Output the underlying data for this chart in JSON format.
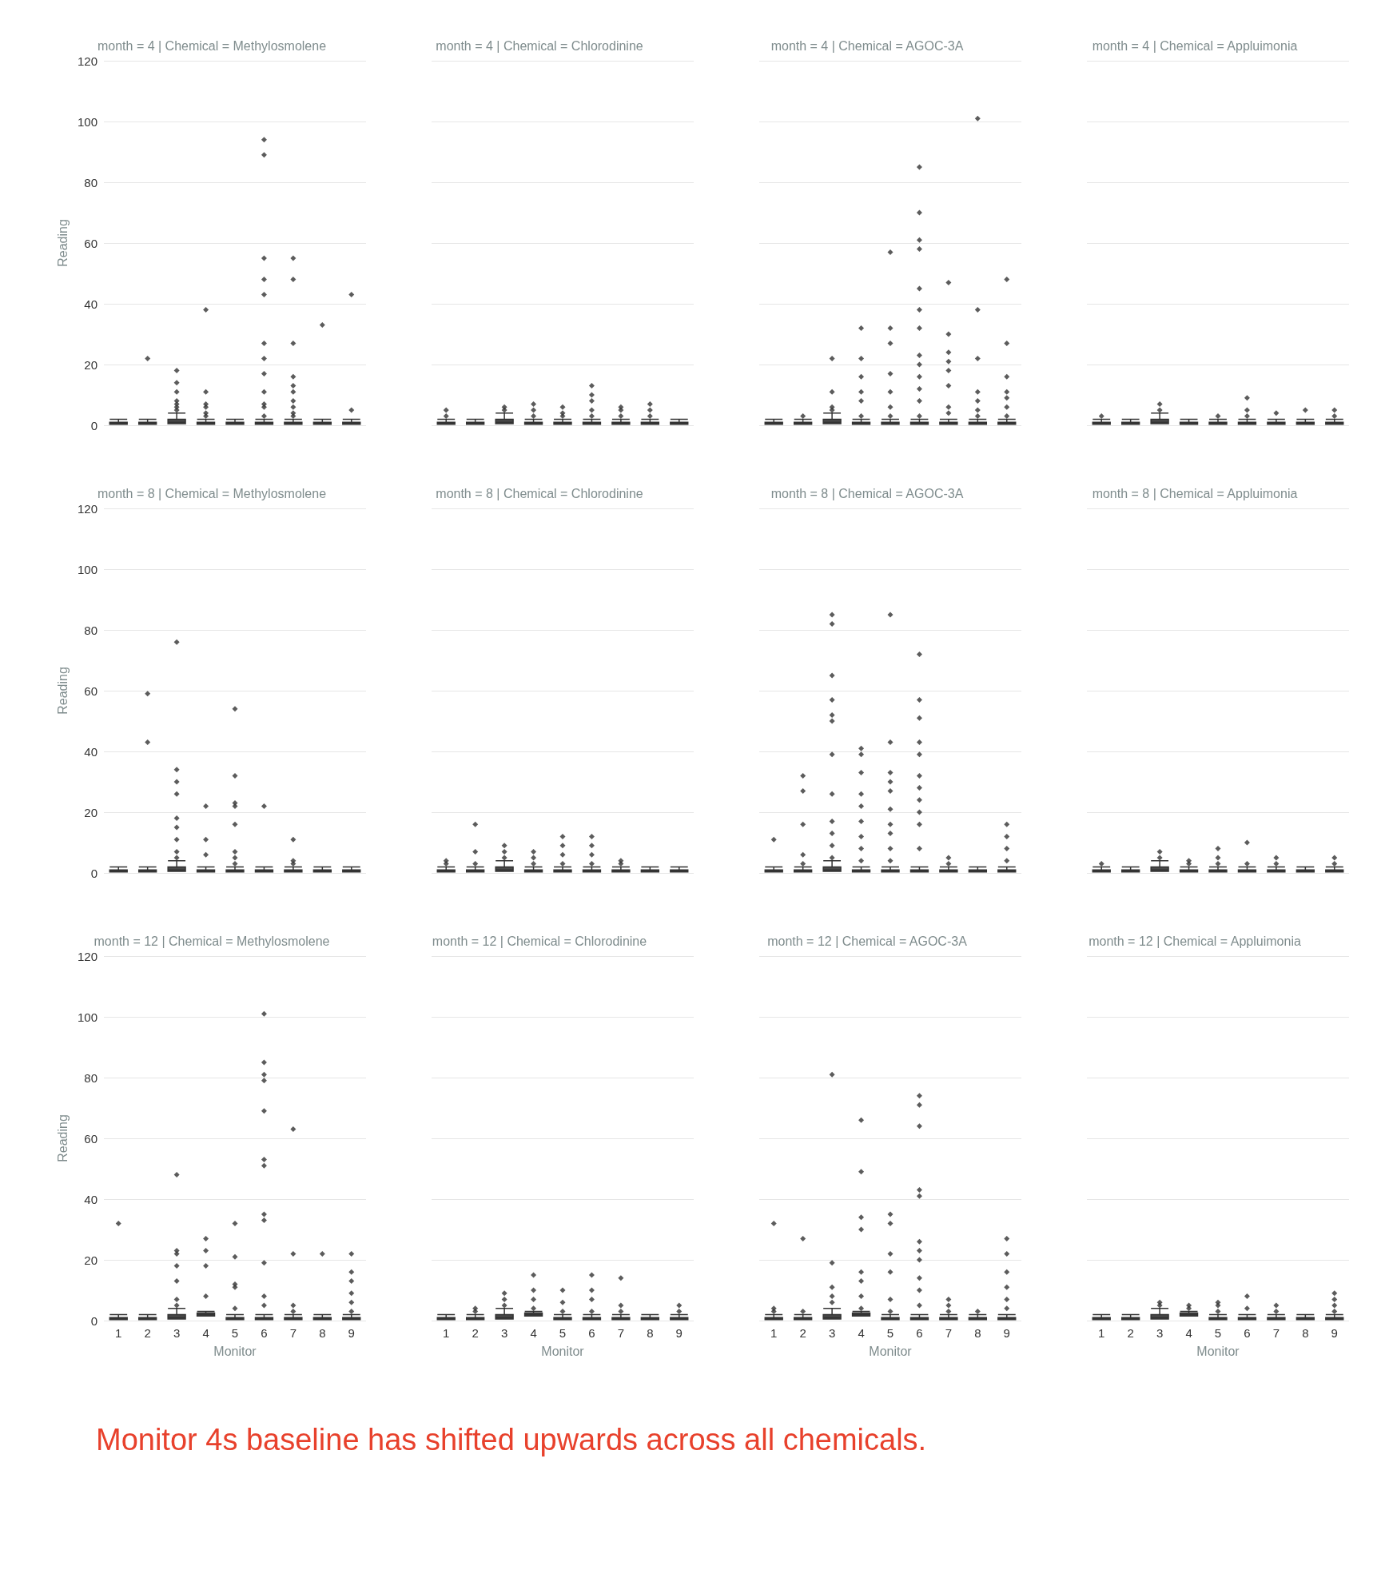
{
  "chart_data": [
    {
      "type": "box",
      "title": "month = 4 | Chemical = Methylosmolene",
      "ylabel": "Reading",
      "categories": [
        "1",
        "2",
        "3",
        "4",
        "5",
        "6",
        "7",
        "8",
        "9"
      ],
      "ylim": [
        0,
        120
      ],
      "yticks": [
        0,
        20,
        40,
        60,
        80,
        100,
        120
      ],
      "grid": "y",
      "tick_labels": "y",
      "marker": "diamond",
      "color": "#4a4a4a",
      "boxes": [
        {
          "low": 0.3,
          "q1": 0.3,
          "median": 0.6,
          "q3": 1,
          "high": 2
        },
        {
          "low": 0.3,
          "q1": 0.3,
          "median": 0.6,
          "q3": 1,
          "high": 2,
          "outliers": [
            22
          ]
        },
        {
          "low": 0.5,
          "q1": 0.5,
          "median": 1,
          "q3": 2,
          "high": 4,
          "outliers": [
            5,
            6,
            7,
            8,
            11,
            14,
            18
          ]
        },
        {
          "low": 0.3,
          "q1": 0.3,
          "median": 0.6,
          "q3": 1,
          "high": 2,
          "outliers": [
            3,
            4,
            6,
            7,
            11,
            38
          ]
        },
        {
          "low": 0.3,
          "q1": 0.3,
          "median": 0.6,
          "q3": 1,
          "high": 2
        },
        {
          "low": 0.3,
          "q1": 0.3,
          "median": 0.6,
          "q3": 1,
          "high": 2,
          "outliers": [
            3,
            6,
            7,
            11,
            17,
            22,
            27,
            43,
            48,
            55,
            89,
            94
          ]
        },
        {
          "low": 0.3,
          "q1": 0.3,
          "median": 0.6,
          "q3": 1,
          "high": 2,
          "outliers": [
            3,
            4,
            6,
            8,
            11,
            13,
            16,
            27,
            48,
            55
          ]
        },
        {
          "low": 0.3,
          "q1": 0.3,
          "median": 0.6,
          "q3": 1,
          "high": 2,
          "outliers": [
            33
          ]
        },
        {
          "low": 0.3,
          "q1": 0.3,
          "median": 0.6,
          "q3": 1,
          "high": 2,
          "outliers": [
            5,
            43
          ]
        }
      ]
    },
    {
      "type": "box",
      "title": "month = 4 | Chemical = Chlorodinine",
      "categories": [
        "1",
        "2",
        "3",
        "4",
        "5",
        "6",
        "7",
        "8",
        "9"
      ],
      "ylim": [
        0,
        120
      ],
      "yticks": [
        0,
        20,
        40,
        60,
        80,
        100,
        120
      ],
      "grid": "y",
      "tick_labels": false,
      "marker": "diamond",
      "color": "#4a4a4a",
      "boxes": [
        {
          "low": 0.3,
          "q1": 0.3,
          "median": 0.6,
          "q3": 1,
          "high": 2,
          "outliers": [
            3,
            5
          ]
        },
        {
          "low": 0.3,
          "q1": 0.3,
          "median": 0.6,
          "q3": 1,
          "high": 2
        },
        {
          "low": 0.5,
          "q1": 0.5,
          "median": 1,
          "q3": 2,
          "high": 4,
          "outliers": [
            5,
            6
          ]
        },
        {
          "low": 0.3,
          "q1": 0.3,
          "median": 0.6,
          "q3": 1,
          "high": 2,
          "outliers": [
            3,
            5,
            7
          ]
        },
        {
          "low": 0.3,
          "q1": 0.3,
          "median": 0.6,
          "q3": 1,
          "high": 2,
          "outliers": [
            3,
            4,
            6
          ]
        },
        {
          "low": 0.3,
          "q1": 0.3,
          "median": 0.6,
          "q3": 1,
          "high": 2,
          "outliers": [
            3,
            5,
            8,
            10,
            13
          ]
        },
        {
          "low": 0.3,
          "q1": 0.3,
          "median": 0.6,
          "q3": 1,
          "high": 2,
          "outliers": [
            3,
            5,
            6
          ]
        },
        {
          "low": 0.3,
          "q1": 0.3,
          "median": 0.6,
          "q3": 1,
          "high": 2,
          "outliers": [
            3,
            5,
            7
          ]
        },
        {
          "low": 0.3,
          "q1": 0.3,
          "median": 0.6,
          "q3": 1,
          "high": 2
        }
      ]
    },
    {
      "type": "box",
      "title": "month = 4 | Chemical = AGOC-3A",
      "categories": [
        "1",
        "2",
        "3",
        "4",
        "5",
        "6",
        "7",
        "8",
        "9"
      ],
      "ylim": [
        0,
        120
      ],
      "yticks": [
        0,
        20,
        40,
        60,
        80,
        100,
        120
      ],
      "grid": "y",
      "tick_labels": false,
      "marker": "diamond",
      "color": "#4a4a4a",
      "boxes": [
        {
          "low": 0.3,
          "q1": 0.3,
          "median": 0.6,
          "q3": 1,
          "high": 2
        },
        {
          "low": 0.3,
          "q1": 0.3,
          "median": 0.6,
          "q3": 1,
          "high": 2,
          "outliers": [
            3
          ]
        },
        {
          "low": 0.5,
          "q1": 0.5,
          "median": 1,
          "q3": 2,
          "high": 4,
          "outliers": [
            5,
            6,
            11,
            22
          ]
        },
        {
          "low": 0.3,
          "q1": 0.3,
          "median": 0.6,
          "q3": 1,
          "high": 2,
          "outliers": [
            3,
            8,
            11,
            16,
            22,
            32
          ]
        },
        {
          "low": 0.3,
          "q1": 0.3,
          "median": 0.6,
          "q3": 1,
          "high": 2,
          "outliers": [
            3,
            6,
            11,
            17,
            27,
            32,
            57
          ]
        },
        {
          "low": 0.3,
          "q1": 0.3,
          "median": 0.6,
          "q3": 1,
          "high": 2,
          "outliers": [
            3,
            8,
            12,
            16,
            20,
            23,
            32,
            38,
            45,
            58,
            61,
            70,
            85
          ]
        },
        {
          "low": 0.3,
          "q1": 0.3,
          "median": 0.6,
          "q3": 1,
          "high": 2,
          "outliers": [
            4,
            6,
            13,
            18,
            21,
            24,
            30,
            47
          ]
        },
        {
          "low": 0.3,
          "q1": 0.3,
          "median": 0.6,
          "q3": 1,
          "high": 2,
          "outliers": [
            3,
            5,
            8,
            11,
            22,
            38,
            101
          ]
        },
        {
          "low": 0.3,
          "q1": 0.3,
          "median": 0.6,
          "q3": 1,
          "high": 2,
          "outliers": [
            3,
            6,
            9,
            11,
            16,
            27,
            48
          ]
        }
      ]
    },
    {
      "type": "box",
      "title": "month = 4 | Chemical = Appluimonia",
      "categories": [
        "1",
        "2",
        "3",
        "4",
        "5",
        "6",
        "7",
        "8",
        "9"
      ],
      "ylim": [
        0,
        120
      ],
      "yticks": [
        0,
        20,
        40,
        60,
        80,
        100,
        120
      ],
      "grid": "y",
      "tick_labels": false,
      "marker": "diamond",
      "color": "#4a4a4a",
      "boxes": [
        {
          "low": 0.3,
          "q1": 0.3,
          "median": 0.6,
          "q3": 1,
          "high": 2,
          "outliers": [
            3
          ]
        },
        {
          "low": 0.3,
          "q1": 0.3,
          "median": 0.6,
          "q3": 1,
          "high": 2
        },
        {
          "low": 0.5,
          "q1": 0.5,
          "median": 1,
          "q3": 2,
          "high": 4,
          "outliers": [
            5,
            7
          ]
        },
        {
          "low": 0.3,
          "q1": 0.3,
          "median": 0.6,
          "q3": 1,
          "high": 2
        },
        {
          "low": 0.3,
          "q1": 0.3,
          "median": 0.6,
          "q3": 1,
          "high": 2,
          "outliers": [
            3
          ]
        },
        {
          "low": 0.3,
          "q1": 0.3,
          "median": 0.6,
          "q3": 1,
          "high": 2,
          "outliers": [
            3,
            5,
            9
          ]
        },
        {
          "low": 0.3,
          "q1": 0.3,
          "median": 0.6,
          "q3": 1,
          "high": 2,
          "outliers": [
            4
          ]
        },
        {
          "low": 0.3,
          "q1": 0.3,
          "median": 0.6,
          "q3": 1,
          "high": 2,
          "outliers": [
            5
          ]
        },
        {
          "low": 0.3,
          "q1": 0.3,
          "median": 0.6,
          "q3": 1,
          "high": 2,
          "outliers": [
            3,
            5
          ]
        }
      ]
    },
    {
      "type": "box",
      "title": "month = 8 | Chemical = Methylosmolene",
      "ylabel": "Reading",
      "categories": [
        "1",
        "2",
        "3",
        "4",
        "5",
        "6",
        "7",
        "8",
        "9"
      ],
      "ylim": [
        0,
        120
      ],
      "yticks": [
        0,
        20,
        40,
        60,
        80,
        100,
        120
      ],
      "grid": "y",
      "tick_labels": "y",
      "marker": "diamond",
      "color": "#4a4a4a",
      "boxes": [
        {
          "low": 0.3,
          "q1": 0.3,
          "median": 0.6,
          "q3": 1,
          "high": 2
        },
        {
          "low": 0.3,
          "q1": 0.3,
          "median": 0.6,
          "q3": 1,
          "high": 2,
          "outliers": [
            43,
            59
          ]
        },
        {
          "low": 0.5,
          "q1": 0.5,
          "median": 1,
          "q3": 2,
          "high": 4,
          "outliers": [
            5,
            7,
            11,
            15,
            18,
            26,
            30,
            34,
            76
          ]
        },
        {
          "low": 0.3,
          "q1": 0.3,
          "median": 0.6,
          "q3": 1,
          "high": 2,
          "outliers": [
            6,
            11,
            22
          ]
        },
        {
          "low": 0.3,
          "q1": 0.3,
          "median": 0.6,
          "q3": 1,
          "high": 2,
          "outliers": [
            3,
            5,
            7,
            16,
            22,
            23,
            32,
            54
          ]
        },
        {
          "low": 0.3,
          "q1": 0.3,
          "median": 0.6,
          "q3": 1,
          "high": 2,
          "outliers": [
            22
          ]
        },
        {
          "low": 0.3,
          "q1": 0.3,
          "median": 0.6,
          "q3": 1,
          "high": 2,
          "outliers": [
            3,
            4,
            11
          ]
        },
        {
          "low": 0.3,
          "q1": 0.3,
          "median": 0.6,
          "q3": 1,
          "high": 2
        },
        {
          "low": 0.3,
          "q1": 0.3,
          "median": 0.6,
          "q3": 1,
          "high": 2
        }
      ]
    },
    {
      "type": "box",
      "title": "month = 8 | Chemical = Chlorodinine",
      "categories": [
        "1",
        "2",
        "3",
        "4",
        "5",
        "6",
        "7",
        "8",
        "9"
      ],
      "ylim": [
        0,
        120
      ],
      "yticks": [
        0,
        20,
        40,
        60,
        80,
        100,
        120
      ],
      "grid": "y",
      "tick_labels": false,
      "marker": "diamond",
      "color": "#4a4a4a",
      "boxes": [
        {
          "low": 0.3,
          "q1": 0.3,
          "median": 0.6,
          "q3": 1,
          "high": 2,
          "outliers": [
            3,
            4
          ]
        },
        {
          "low": 0.3,
          "q1": 0.3,
          "median": 0.6,
          "q3": 1,
          "high": 2,
          "outliers": [
            3,
            7,
            16
          ]
        },
        {
          "low": 0.5,
          "q1": 0.5,
          "median": 1,
          "q3": 2,
          "high": 4,
          "outliers": [
            5,
            7,
            9
          ]
        },
        {
          "low": 0.3,
          "q1": 0.3,
          "median": 0.6,
          "q3": 1,
          "high": 2,
          "outliers": [
            3,
            5,
            7
          ]
        },
        {
          "low": 0.3,
          "q1": 0.3,
          "median": 0.6,
          "q3": 1,
          "high": 2,
          "outliers": [
            3,
            6,
            9,
            12
          ]
        },
        {
          "low": 0.3,
          "q1": 0.3,
          "median": 0.6,
          "q3": 1,
          "high": 2,
          "outliers": [
            3,
            6,
            9,
            12
          ]
        },
        {
          "low": 0.3,
          "q1": 0.3,
          "median": 0.6,
          "q3": 1,
          "high": 2,
          "outliers": [
            3,
            4
          ]
        },
        {
          "low": 0.3,
          "q1": 0.3,
          "median": 0.6,
          "q3": 1,
          "high": 2
        },
        {
          "low": 0.3,
          "q1": 0.3,
          "median": 0.6,
          "q3": 1,
          "high": 2
        }
      ]
    },
    {
      "type": "box",
      "title": "month = 8 | Chemical = AGOC-3A",
      "categories": [
        "1",
        "2",
        "3",
        "4",
        "5",
        "6",
        "7",
        "8",
        "9"
      ],
      "ylim": [
        0,
        120
      ],
      "yticks": [
        0,
        20,
        40,
        60,
        80,
        100,
        120
      ],
      "grid": "y",
      "tick_labels": false,
      "marker": "diamond",
      "color": "#4a4a4a",
      "boxes": [
        {
          "low": 0.3,
          "q1": 0.3,
          "median": 0.6,
          "q3": 1,
          "high": 2,
          "outliers": [
            11
          ]
        },
        {
          "low": 0.3,
          "q1": 0.3,
          "median": 0.6,
          "q3": 1,
          "high": 2,
          "outliers": [
            3,
            6,
            16,
            27,
            32
          ]
        },
        {
          "low": 0.5,
          "q1": 0.5,
          "median": 1,
          "q3": 2,
          "high": 4,
          "outliers": [
            5,
            9,
            13,
            17,
            26,
            39,
            50,
            52,
            57,
            65,
            82,
            85
          ]
        },
        {
          "low": 0.3,
          "q1": 0.3,
          "median": 0.6,
          "q3": 1,
          "high": 2,
          "outliers": [
            4,
            8,
            12,
            17,
            22,
            26,
            33,
            39,
            41
          ]
        },
        {
          "low": 0.3,
          "q1": 0.3,
          "median": 0.6,
          "q3": 1,
          "high": 2,
          "outliers": [
            4,
            8,
            13,
            16,
            21,
            27,
            30,
            33,
            43,
            85
          ]
        },
        {
          "low": 0.3,
          "q1": 0.3,
          "median": 0.6,
          "q3": 1,
          "high": 2,
          "outliers": [
            8,
            16,
            20,
            24,
            28,
            32,
            39,
            43,
            51,
            57,
            72
          ]
        },
        {
          "low": 0.3,
          "q1": 0.3,
          "median": 0.6,
          "q3": 1,
          "high": 2,
          "outliers": [
            3,
            5
          ]
        },
        {
          "low": 0.3,
          "q1": 0.3,
          "median": 0.6,
          "q3": 1,
          "high": 2
        },
        {
          "low": 0.3,
          "q1": 0.3,
          "median": 0.6,
          "q3": 1,
          "high": 2,
          "outliers": [
            4,
            8,
            12,
            16
          ]
        }
      ]
    },
    {
      "type": "box",
      "title": "month = 8 | Chemical = Appluimonia",
      "categories": [
        "1",
        "2",
        "3",
        "4",
        "5",
        "6",
        "7",
        "8",
        "9"
      ],
      "ylim": [
        0,
        120
      ],
      "yticks": [
        0,
        20,
        40,
        60,
        80,
        100,
        120
      ],
      "grid": "y",
      "tick_labels": false,
      "marker": "diamond",
      "color": "#4a4a4a",
      "boxes": [
        {
          "low": 0.3,
          "q1": 0.3,
          "median": 0.6,
          "q3": 1,
          "high": 2,
          "outliers": [
            3
          ]
        },
        {
          "low": 0.3,
          "q1": 0.3,
          "median": 0.6,
          "q3": 1,
          "high": 2
        },
        {
          "low": 0.5,
          "q1": 0.5,
          "median": 1,
          "q3": 2,
          "high": 4,
          "outliers": [
            5,
            7
          ]
        },
        {
          "low": 0.3,
          "q1": 0.3,
          "median": 0.6,
          "q3": 1,
          "high": 2,
          "outliers": [
            3,
            4
          ]
        },
        {
          "low": 0.3,
          "q1": 0.3,
          "median": 0.6,
          "q3": 1,
          "high": 2,
          "outliers": [
            3,
            5,
            8
          ]
        },
        {
          "low": 0.3,
          "q1": 0.3,
          "median": 0.6,
          "q3": 1,
          "high": 2,
          "outliers": [
            3,
            10
          ]
        },
        {
          "low": 0.3,
          "q1": 0.3,
          "median": 0.6,
          "q3": 1,
          "high": 2,
          "outliers": [
            3,
            5
          ]
        },
        {
          "low": 0.3,
          "q1": 0.3,
          "median": 0.6,
          "q3": 1,
          "high": 2
        },
        {
          "low": 0.3,
          "q1": 0.3,
          "median": 0.6,
          "q3": 1,
          "high": 2,
          "outliers": [
            3,
            5
          ]
        }
      ]
    },
    {
      "type": "box",
      "title": "month = 12 | Chemical = Methylosmolene",
      "ylabel": "Reading",
      "xlabel": "Monitor",
      "categories": [
        "1",
        "2",
        "3",
        "4",
        "5",
        "6",
        "7",
        "8",
        "9"
      ],
      "ylim": [
        0,
        120
      ],
      "yticks": [
        0,
        20,
        40,
        60,
        80,
        100,
        120
      ],
      "grid": "y",
      "marker": "diamond",
      "color": "#4a4a4a",
      "boxes": [
        {
          "low": 0.3,
          "q1": 0.3,
          "median": 0.6,
          "q3": 1,
          "high": 2,
          "outliers": [
            32
          ]
        },
        {
          "low": 0.3,
          "q1": 0.3,
          "median": 0.6,
          "q3": 1,
          "high": 2
        },
        {
          "low": 0.5,
          "q1": 0.5,
          "median": 1,
          "q3": 2,
          "high": 4,
          "outliers": [
            5,
            7,
            13,
            18,
            22,
            23,
            48
          ]
        },
        {
          "low": 1.5,
          "q1": 1.5,
          "median": 2,
          "q3": 2.5,
          "high": 3,
          "outliers": [
            8,
            18,
            23,
            27
          ]
        },
        {
          "low": 0.3,
          "q1": 0.3,
          "median": 0.6,
          "q3": 1,
          "high": 2,
          "outliers": [
            4,
            11,
            12,
            21,
            32
          ]
        },
        {
          "low": 0.3,
          "q1": 0.3,
          "median": 0.6,
          "q3": 1,
          "high": 2,
          "outliers": [
            5,
            8,
            19,
            33,
            35,
            51,
            53,
            69,
            79,
            81,
            85,
            101
          ]
        },
        {
          "low": 0.3,
          "q1": 0.3,
          "median": 0.6,
          "q3": 1,
          "high": 2,
          "outliers": [
            3,
            5,
            22,
            63
          ]
        },
        {
          "low": 0.3,
          "q1": 0.3,
          "median": 0.6,
          "q3": 1,
          "high": 2,
          "outliers": [
            22
          ]
        },
        {
          "low": 0.3,
          "q1": 0.3,
          "median": 0.6,
          "q3": 1,
          "high": 2,
          "outliers": [
            3,
            6,
            9,
            13,
            16,
            22
          ]
        }
      ]
    },
    {
      "type": "box",
      "title": "month = 12 | Chemical = Chlorodinine",
      "xlabel": "Monitor",
      "categories": [
        "1",
        "2",
        "3",
        "4",
        "5",
        "6",
        "7",
        "8",
        "9"
      ],
      "ylim": [
        0,
        120
      ],
      "yticks": [
        0,
        20,
        40,
        60,
        80,
        100,
        120
      ],
      "grid": "y",
      "tick_labels": "x",
      "marker": "diamond",
      "color": "#4a4a4a",
      "boxes": [
        {
          "low": 0.3,
          "q1": 0.3,
          "median": 0.6,
          "q3": 1,
          "high": 2
        },
        {
          "low": 0.3,
          "q1": 0.3,
          "median": 0.6,
          "q3": 1,
          "high": 2,
          "outliers": [
            3,
            4
          ]
        },
        {
          "low": 0.5,
          "q1": 0.5,
          "median": 1,
          "q3": 2,
          "high": 4,
          "outliers": [
            5,
            7,
            9
          ]
        },
        {
          "low": 1.5,
          "q1": 1.5,
          "median": 2,
          "q3": 2.5,
          "high": 3,
          "outliers": [
            4,
            7,
            10,
            15
          ]
        },
        {
          "low": 0.3,
          "q1": 0.3,
          "median": 0.6,
          "q3": 1,
          "high": 2,
          "outliers": [
            3,
            6,
            10
          ]
        },
        {
          "low": 0.3,
          "q1": 0.3,
          "median": 0.6,
          "q3": 1,
          "high": 2,
          "outliers": [
            3,
            7,
            10,
            15
          ]
        },
        {
          "low": 0.3,
          "q1": 0.3,
          "median": 0.6,
          "q3": 1,
          "high": 2,
          "outliers": [
            3,
            5,
            14
          ]
        },
        {
          "low": 0.3,
          "q1": 0.3,
          "median": 0.6,
          "q3": 1,
          "high": 2
        },
        {
          "low": 0.3,
          "q1": 0.3,
          "median": 0.6,
          "q3": 1,
          "high": 2,
          "outliers": [
            3,
            5
          ]
        }
      ]
    },
    {
      "type": "box",
      "title": "month = 12 | Chemical = AGOC-3A",
      "xlabel": "Monitor",
      "categories": [
        "1",
        "2",
        "3",
        "4",
        "5",
        "6",
        "7",
        "8",
        "9"
      ],
      "ylim": [
        0,
        120
      ],
      "yticks": [
        0,
        20,
        40,
        60,
        80,
        100,
        120
      ],
      "grid": "y",
      "tick_labels": "x",
      "marker": "diamond",
      "color": "#4a4a4a",
      "boxes": [
        {
          "low": 0.3,
          "q1": 0.3,
          "median": 0.6,
          "q3": 1,
          "high": 2,
          "outliers": [
            3,
            4,
            32
          ]
        },
        {
          "low": 0.3,
          "q1": 0.3,
          "median": 0.6,
          "q3": 1,
          "high": 2,
          "outliers": [
            3,
            27
          ]
        },
        {
          "low": 0.5,
          "q1": 0.5,
          "median": 1,
          "q3": 2,
          "high": 4,
          "outliers": [
            6,
            8,
            11,
            19,
            81
          ]
        },
        {
          "low": 1.5,
          "q1": 1.5,
          "median": 2,
          "q3": 2.5,
          "high": 3,
          "outliers": [
            4,
            8,
            13,
            16,
            30,
            34,
            49,
            66
          ]
        },
        {
          "low": 0.3,
          "q1": 0.3,
          "median": 0.6,
          "q3": 1,
          "high": 2,
          "outliers": [
            3,
            7,
            16,
            22,
            32,
            35
          ]
        },
        {
          "low": 0.3,
          "q1": 0.3,
          "median": 0.6,
          "q3": 1,
          "high": 2,
          "outliers": [
            5,
            10,
            14,
            20,
            23,
            26,
            41,
            43,
            64,
            71,
            74
          ]
        },
        {
          "low": 0.3,
          "q1": 0.3,
          "median": 0.6,
          "q3": 1,
          "high": 2,
          "outliers": [
            3,
            5,
            7
          ]
        },
        {
          "low": 0.3,
          "q1": 0.3,
          "median": 0.6,
          "q3": 1,
          "high": 2,
          "outliers": [
            3
          ]
        },
        {
          "low": 0.3,
          "q1": 0.3,
          "median": 0.6,
          "q3": 1,
          "high": 2,
          "outliers": [
            4,
            7,
            11,
            16,
            22,
            27
          ]
        }
      ]
    },
    {
      "type": "box",
      "title": "month = 12 | Chemical = Appluimonia",
      "xlabel": "Monitor",
      "categories": [
        "1",
        "2",
        "3",
        "4",
        "5",
        "6",
        "7",
        "8",
        "9"
      ],
      "ylim": [
        0,
        120
      ],
      "yticks": [
        0,
        20,
        40,
        60,
        80,
        100,
        120
      ],
      "grid": "y",
      "tick_labels": "x",
      "marker": "diamond",
      "color": "#4a4a4a",
      "annotations": [
        "Monitor 4s baseline has shifted upwards across all chemicals."
      ],
      "boxes": [
        {
          "low": 0.3,
          "q1": 0.3,
          "median": 0.6,
          "q3": 1,
          "high": 2
        },
        {
          "low": 0.3,
          "q1": 0.3,
          "median": 0.6,
          "q3": 1,
          "high": 2
        },
        {
          "low": 0.5,
          "q1": 0.5,
          "median": 1,
          "q3": 2,
          "high": 4,
          "outliers": [
            5,
            6
          ]
        },
        {
          "low": 1.5,
          "q1": 1.5,
          "median": 2,
          "q3": 2.5,
          "high": 3,
          "outliers": [
            4,
            5
          ]
        },
        {
          "low": 0.3,
          "q1": 0.3,
          "median": 0.6,
          "q3": 1,
          "high": 2,
          "outliers": [
            3,
            5,
            6
          ]
        },
        {
          "low": 0.3,
          "q1": 0.3,
          "median": 0.6,
          "q3": 1,
          "high": 2,
          "outliers": [
            4,
            8
          ]
        },
        {
          "low": 0.3,
          "q1": 0.3,
          "median": 0.6,
          "q3": 1,
          "high": 2,
          "outliers": [
            3,
            5
          ]
        },
        {
          "low": 0.3,
          "q1": 0.3,
          "median": 0.6,
          "q3": 1,
          "high": 2
        },
        {
          "low": 0.3,
          "q1": 0.3,
          "median": 0.6,
          "q3": 1,
          "high": 2,
          "outliers": [
            3,
            5,
            7,
            9
          ]
        }
      ]
    }
  ]
}
